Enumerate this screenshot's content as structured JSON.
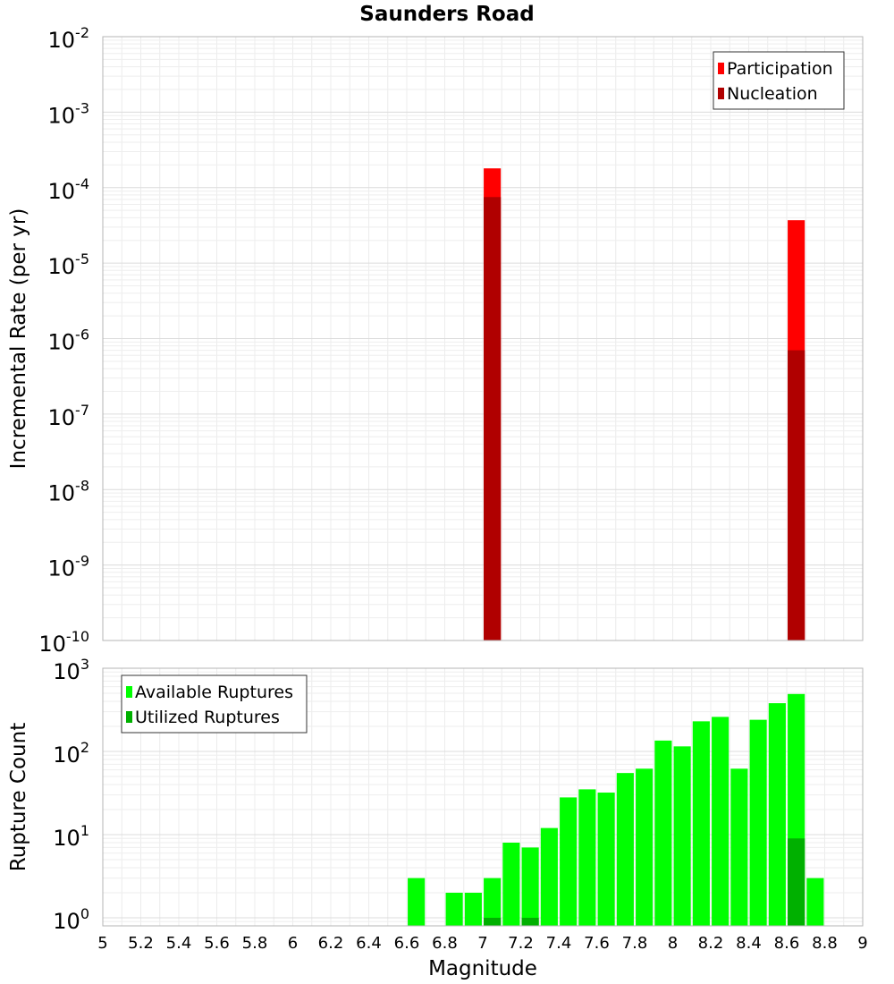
{
  "chart_data": [
    {
      "type": "bar",
      "title": "Saunders Road",
      "xlabel": "",
      "ylabel": "Incremental Rate (per yr)",
      "yscale": "log",
      "ylim": [
        1e-10,
        0.01
      ],
      "xlim": [
        5,
        9
      ],
      "y_ticks": [
        {
          "base": "10",
          "exp": "-10"
        },
        {
          "base": "10",
          "exp": "-9"
        },
        {
          "base": "10",
          "exp": "-8"
        },
        {
          "base": "10",
          "exp": "-7"
        },
        {
          "base": "10",
          "exp": "-6"
        },
        {
          "base": "10",
          "exp": "-5"
        },
        {
          "base": "10",
          "exp": "-4"
        },
        {
          "base": "10",
          "exp": "-3"
        },
        {
          "base": "10",
          "exp": "-2"
        }
      ],
      "grid": true,
      "legend_position": "top-right",
      "series": [
        {
          "name": "Participation",
          "color": "#ff0000",
          "points": [
            {
              "x": 7.05,
              "y": 0.00018
            },
            {
              "x": 8.65,
              "y": 3.7e-05
            }
          ]
        },
        {
          "name": "Nucleation",
          "color": "#b00000",
          "points": [
            {
              "x": 7.05,
              "y": 7.5e-05
            },
            {
              "x": 8.65,
              "y": 7e-07
            }
          ]
        }
      ]
    },
    {
      "type": "bar",
      "title": "",
      "xlabel": "Magnitude",
      "ylabel": "Rupture Count",
      "yscale": "log",
      "ylim": [
        0.8,
        1000
      ],
      "xlim": [
        5,
        9
      ],
      "y_ticks": [
        {
          "base": "10",
          "exp": "0",
          "value": 1
        },
        {
          "base": "10",
          "exp": "1",
          "value": 10
        },
        {
          "base": "10",
          "exp": "2",
          "value": 100
        },
        {
          "base": "10",
          "exp": "3",
          "value": 1000
        }
      ],
      "x_ticks": [
        "5",
        "5.2",
        "5.4",
        "5.6",
        "5.8",
        "6",
        "6.2",
        "6.4",
        "6.6",
        "6.8",
        "7",
        "7.2",
        "7.4",
        "7.6",
        "7.8",
        "8",
        "8.2",
        "8.4",
        "8.6",
        "8.8",
        "9"
      ],
      "grid": true,
      "legend_position": "top-left",
      "series": [
        {
          "name": "Available Ruptures",
          "color": "#00ff00",
          "points": [
            {
              "x": 6.65,
              "y": 3
            },
            {
              "x": 6.85,
              "y": 2
            },
            {
              "x": 6.95,
              "y": 2
            },
            {
              "x": 7.05,
              "y": 3
            },
            {
              "x": 7.15,
              "y": 8
            },
            {
              "x": 7.25,
              "y": 7
            },
            {
              "x": 7.35,
              "y": 12
            },
            {
              "x": 7.45,
              "y": 28
            },
            {
              "x": 7.55,
              "y": 35
            },
            {
              "x": 7.65,
              "y": 32
            },
            {
              "x": 7.75,
              "y": 55
            },
            {
              "x": 7.85,
              "y": 62
            },
            {
              "x": 7.95,
              "y": 135
            },
            {
              "x": 8.05,
              "y": 115
            },
            {
              "x": 8.15,
              "y": 230
            },
            {
              "x": 8.25,
              "y": 260
            },
            {
              "x": 8.35,
              "y": 62
            },
            {
              "x": 8.45,
              "y": 240
            },
            {
              "x": 8.55,
              "y": 380
            },
            {
              "x": 8.65,
              "y": 490
            },
            {
              "x": 8.75,
              "y": 3
            }
          ]
        },
        {
          "name": "Utilized Ruptures",
          "color": "#00b000",
          "points": [
            {
              "x": 7.05,
              "y": 1
            },
            {
              "x": 7.25,
              "y": 1
            },
            {
              "x": 8.65,
              "y": 9
            }
          ]
        }
      ]
    }
  ]
}
